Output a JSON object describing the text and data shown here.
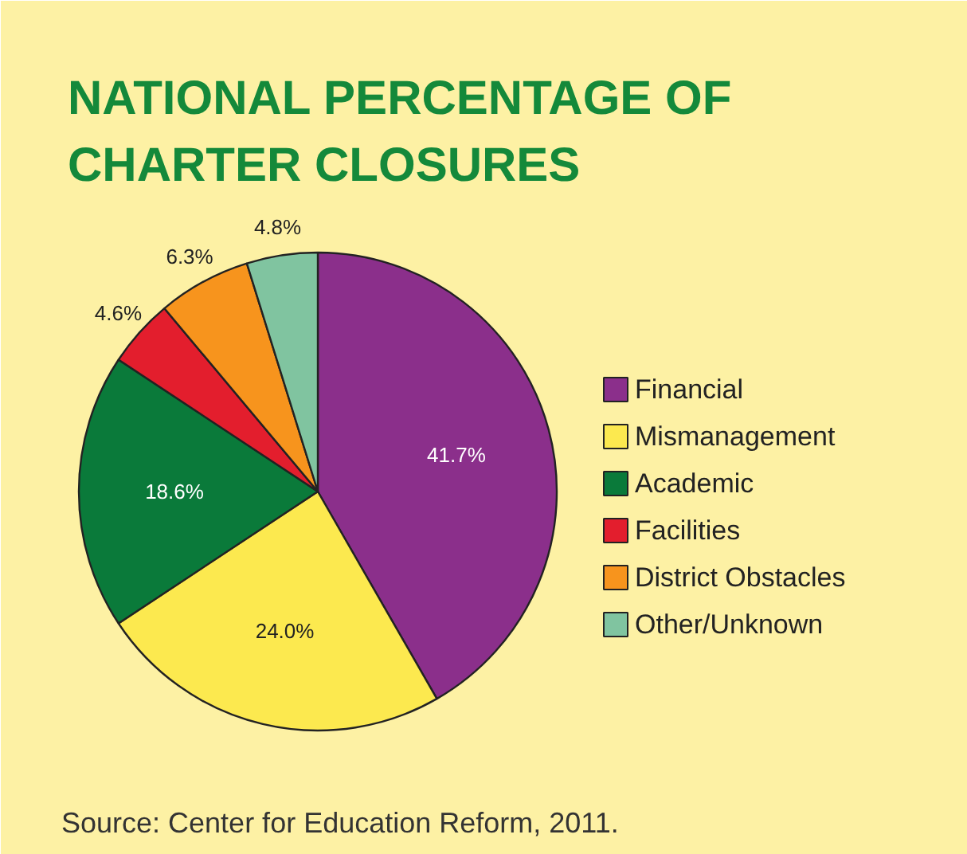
{
  "chart_data": {
    "type": "pie",
    "title": "NATIONAL PERCENTAGE OF\nCHARTER CLOSURES",
    "categories": [
      "Financial",
      "Mismanagement",
      "Academic",
      "Facilities",
      "District Obstacles",
      "Other/Unknown"
    ],
    "values": [
      41.7,
      24.0,
      18.6,
      4.6,
      6.3,
      4.8
    ],
    "colors": [
      "#8b2f8b",
      "#fce94f",
      "#0a7a3a",
      "#e31e2d",
      "#f7941d",
      "#80c4a0"
    ],
    "value_labels": [
      "41.7%",
      "24.0%",
      "18.6%",
      "4.6%",
      "6.3%",
      "4.8%"
    ],
    "legend": "right",
    "annotations": [
      "Source: Center for Education Reform, 2011."
    ]
  }
}
